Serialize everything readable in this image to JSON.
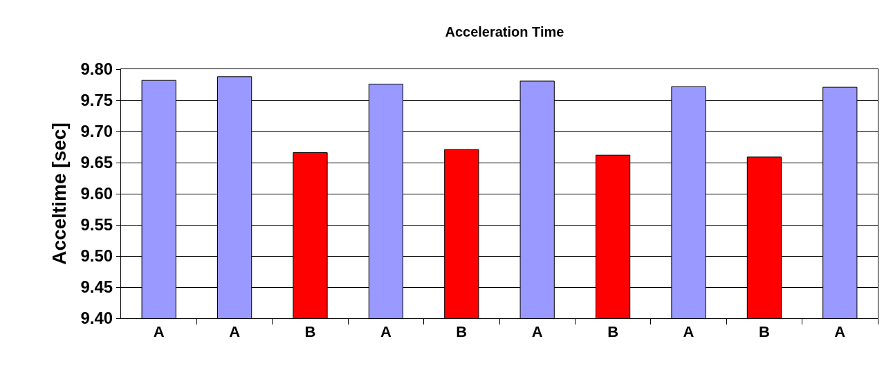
{
  "chart_data": {
    "type": "bar",
    "title": "Acceleration Time",
    "ylabel": "Acceltime [sec]",
    "categories": [
      "A",
      "A",
      "B",
      "A",
      "B",
      "A",
      "B",
      "A",
      "B",
      "A"
    ],
    "values": [
      9.782,
      9.788,
      9.666,
      9.776,
      9.671,
      9.781,
      9.662,
      9.772,
      9.659,
      9.771
    ],
    "colors": [
      "#9999ff",
      "#9999ff",
      "#ff0000",
      "#9999ff",
      "#ff0000",
      "#9999ff",
      "#ff0000",
      "#9999ff",
      "#ff0000",
      "#9999ff"
    ],
    "ylim": [
      9.4,
      9.8
    ],
    "yticks": [
      {
        "value": 9.4,
        "label": "9.40"
      },
      {
        "value": 9.45,
        "label": "9.45"
      },
      {
        "value": 9.5,
        "label": "9.50"
      },
      {
        "value": 9.55,
        "label": "9.55"
      },
      {
        "value": 9.6,
        "label": "9.60"
      },
      {
        "value": 9.65,
        "label": "9.65"
      },
      {
        "value": 9.7,
        "label": "9.70"
      },
      {
        "value": 9.75,
        "label": "9.75"
      },
      {
        "value": 9.8,
        "label": "9.80"
      }
    ],
    "grid": "y"
  }
}
